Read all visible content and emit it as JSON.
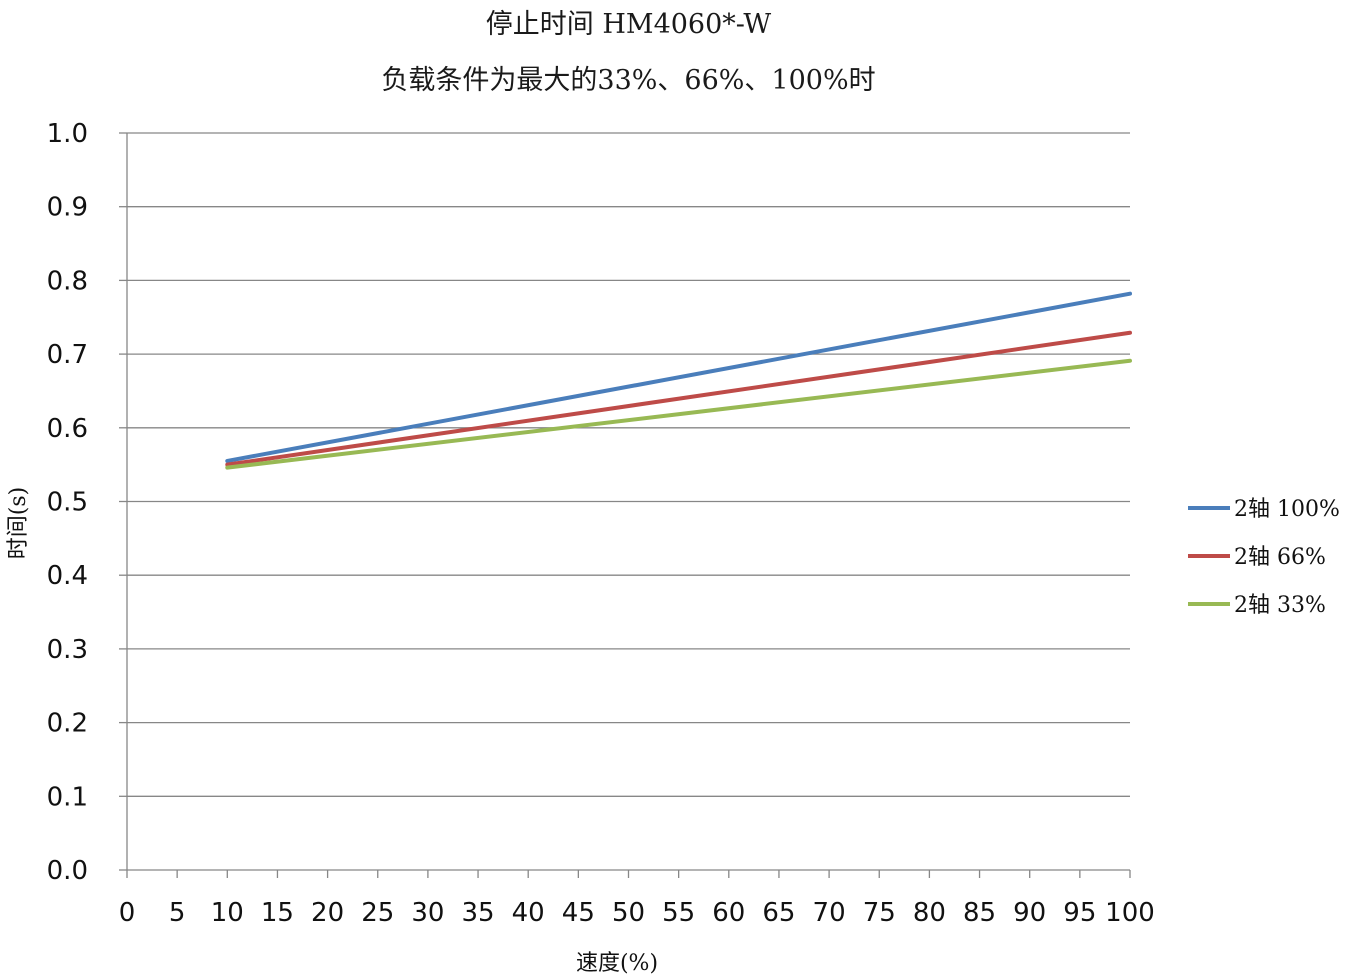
{
  "chart_data": {
    "type": "line",
    "title": "停止时间 HM4060*-W",
    "subtitle": "负载条件为最大的33%、66%、100%时",
    "xlabel": "速度(%)",
    "ylabel": "时间(s)",
    "x_ticks": [
      "0",
      "5",
      "10",
      "15",
      "20",
      "25",
      "30",
      "35",
      "40",
      "45",
      "50",
      "55",
      "60",
      "65",
      "70",
      "75",
      "80",
      "85",
      "90",
      "95",
      "100"
    ],
    "y_ticks": [
      "0.0",
      "0.1",
      "0.2",
      "0.3",
      "0.4",
      "0.5",
      "0.6",
      "0.7",
      "0.8",
      "0.9",
      "1.0"
    ],
    "xlim": [
      0,
      100
    ],
    "ylim": [
      0,
      1.0
    ],
    "grid": "horizontal",
    "legend_position": "right",
    "x": [
      10,
      100
    ],
    "series": [
      {
        "name": "2轴 100%",
        "color": "#4a7ebb",
        "values": [
          0.555,
          0.782
        ]
      },
      {
        "name": "2轴 66%",
        "color": "#be4b48",
        "values": [
          0.55,
          0.729
        ]
      },
      {
        "name": "2轴 33%",
        "color": "#98b954",
        "values": [
          0.546,
          0.691
        ]
      }
    ]
  }
}
